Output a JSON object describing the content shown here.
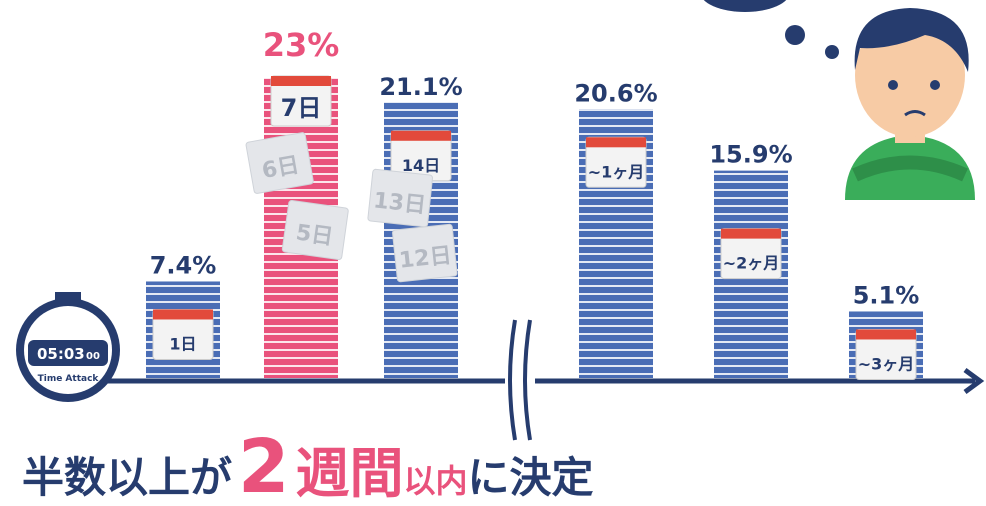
{
  "chart_data": {
    "type": "bar",
    "categories": [
      "1日",
      "7日",
      "14日",
      "~1ヶ月",
      "~2ヶ月",
      "~3ヶ月"
    ],
    "values": [
      7.4,
      23,
      21.1,
      20.6,
      15.9,
      5.1
    ],
    "value_labels": [
      "7.4%",
      "23%",
      "21.1%",
      "20.6%",
      "15.9%",
      "5.1%"
    ],
    "colors": [
      "#4a6db5",
      "#e9527c",
      "#4a6db5",
      "#4a6db5",
      "#4a6db5",
      "#4a6db5"
    ],
    "label_colors": [
      "#263c6e",
      "#e9527c",
      "#263c6e",
      "#263c6e",
      "#263c6e",
      "#263c6e"
    ],
    "torn_pages": [
      "6日",
      "5日",
      "13日",
      "12日"
    ],
    "stopwatch": {
      "time": "05:03",
      "sub": "00",
      "caption": "Time Attack"
    },
    "headline": [
      "半数以上が",
      "2",
      "週間",
      "以内",
      "に決定"
    ]
  }
}
